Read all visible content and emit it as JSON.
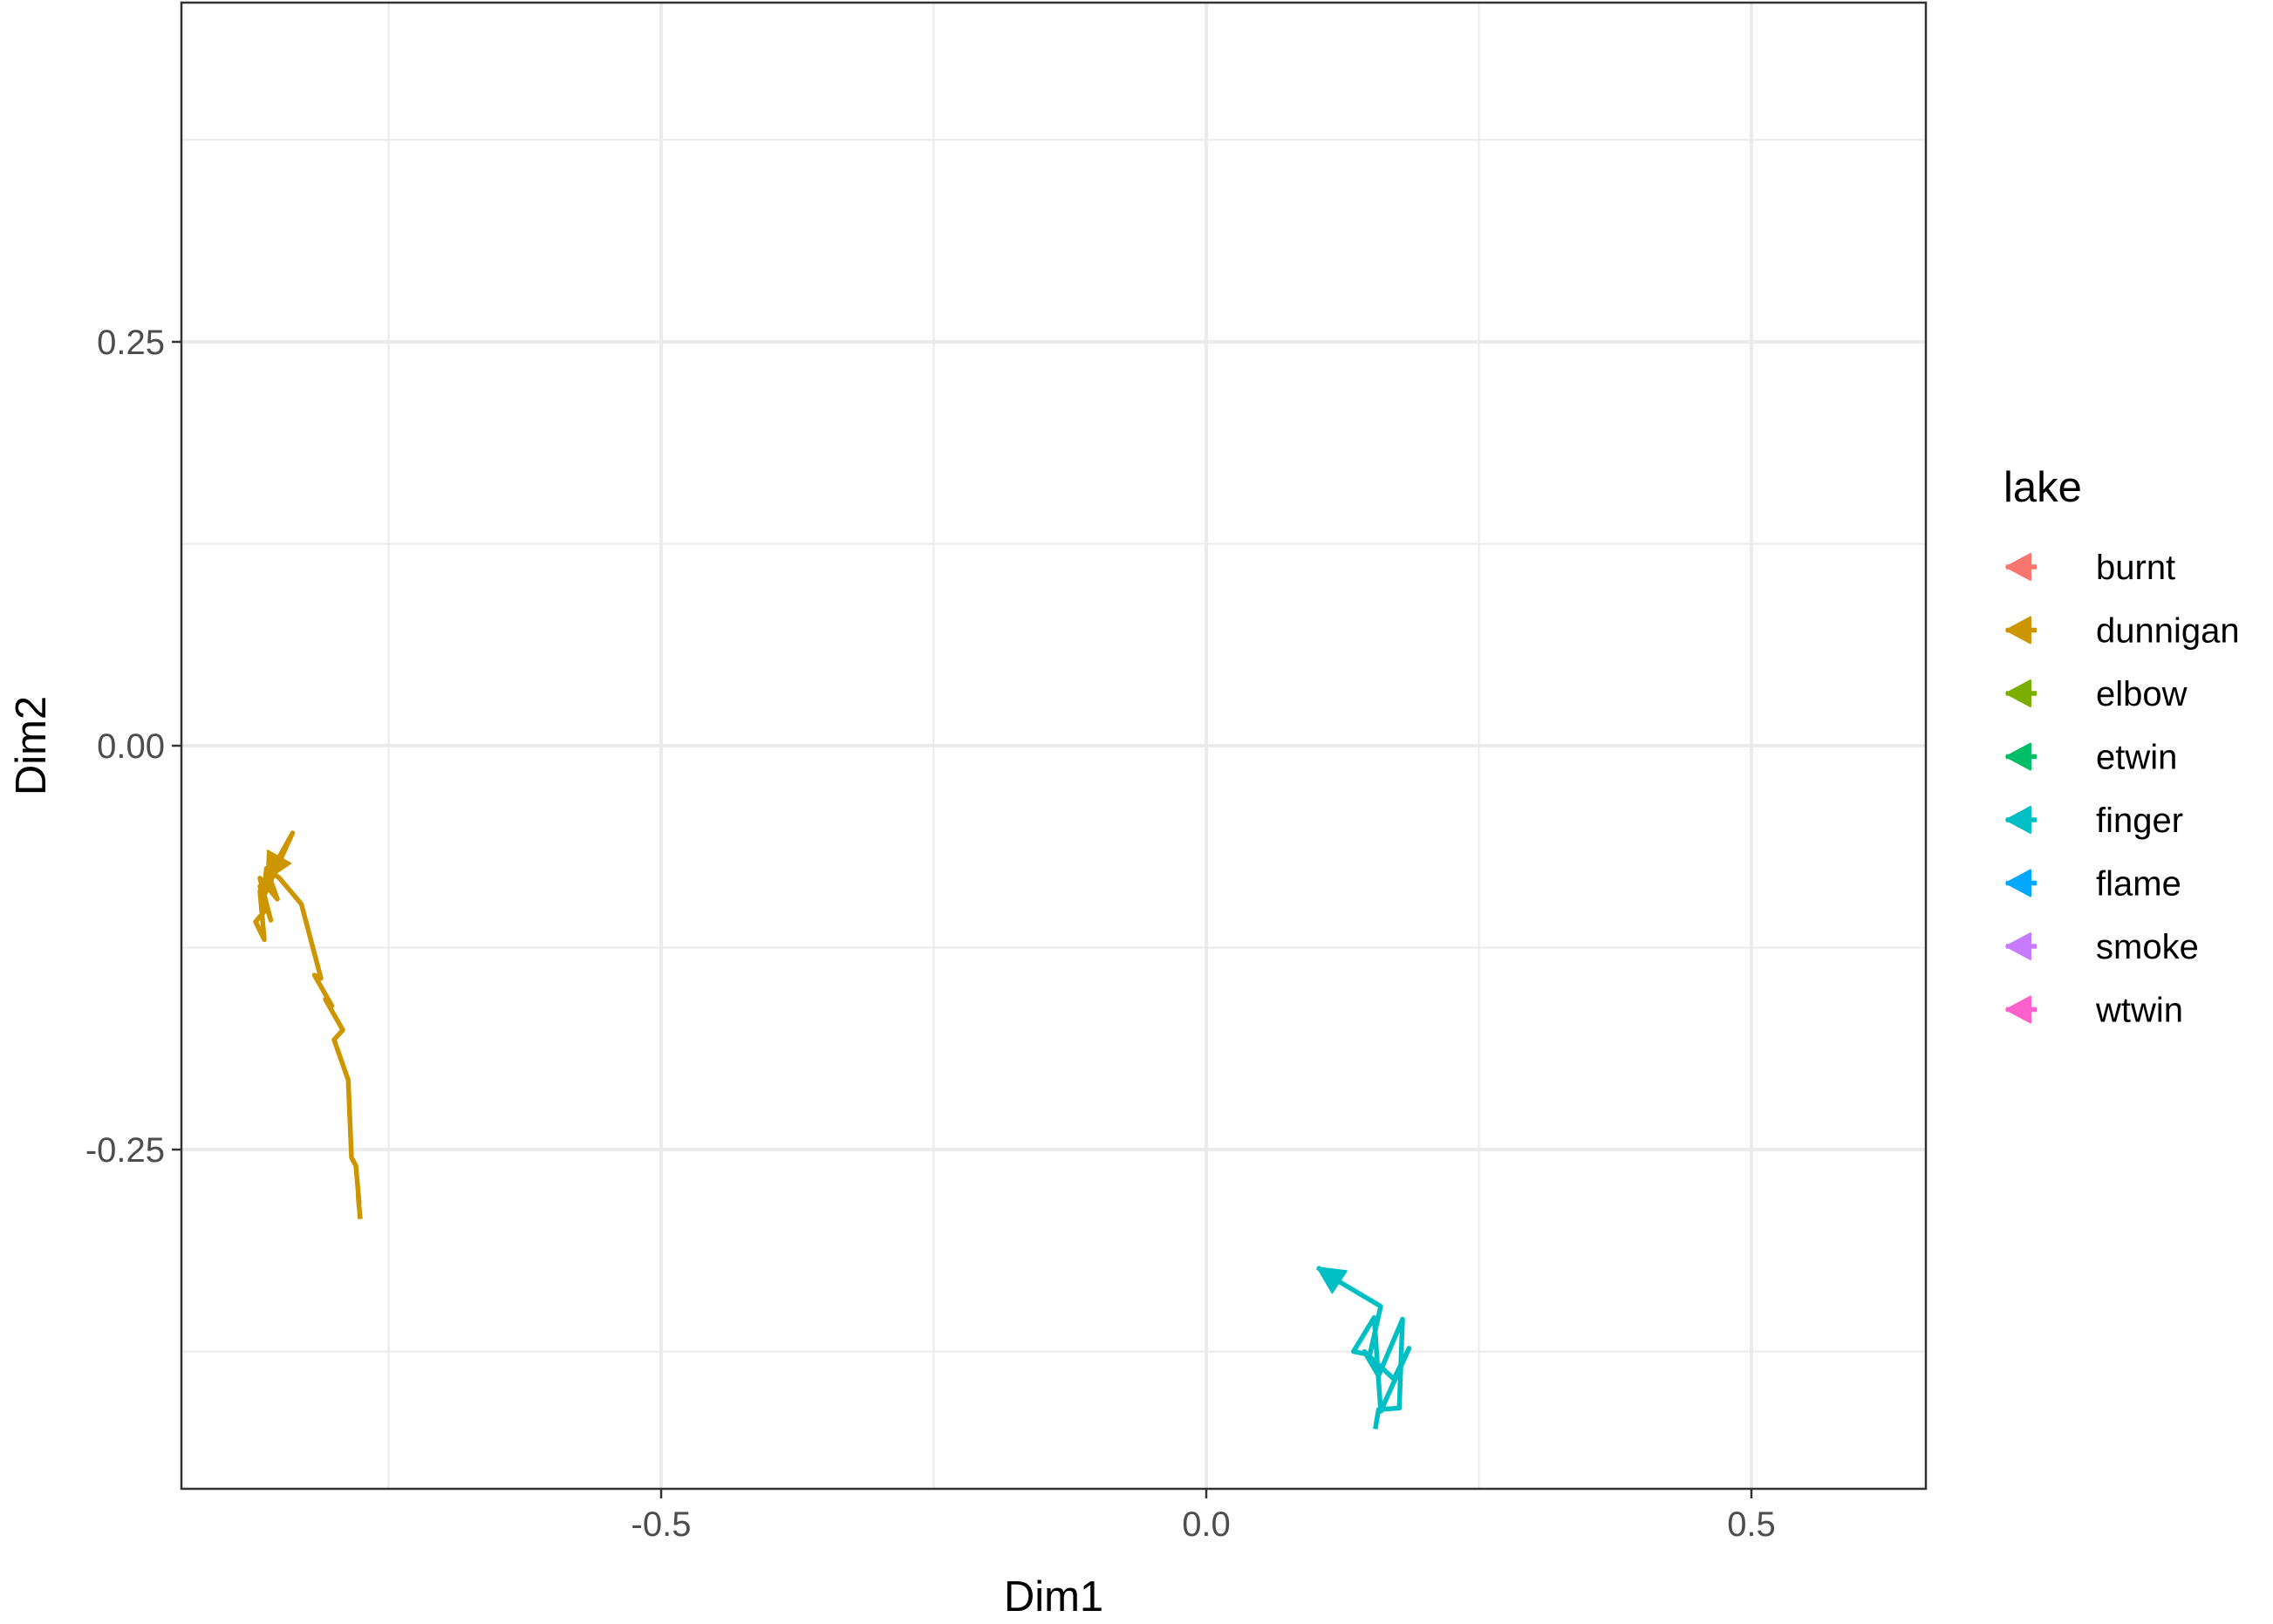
{
  "chart_data": {
    "type": "line",
    "xlabel": "Dim1",
    "ylabel": "Dim2",
    "xlim": [
      -0.94,
      0.66
    ],
    "ylim": [
      -0.46,
      0.46
    ],
    "x_ticks": [
      -0.5,
      0.0,
      0.5
    ],
    "x_tick_labels": [
      "-0.5",
      "0.0",
      "0.5"
    ],
    "y_ticks": [
      -0.25,
      0.0,
      0.25
    ],
    "y_tick_labels": [
      "-0.25",
      "0.00",
      "0.25"
    ],
    "grid": true,
    "legend": {
      "title": "lake",
      "position": "right",
      "entries": [
        {
          "name": "burnt",
          "color": "#F8766D"
        },
        {
          "name": "dunnigan",
          "color": "#CD9600"
        },
        {
          "name": "elbow",
          "color": "#7CAE00"
        },
        {
          "name": "etwin",
          "color": "#00BE67"
        },
        {
          "name": "finger",
          "color": "#00BFC4"
        },
        {
          "name": "flame",
          "color": "#00A9FF"
        },
        {
          "name": "smoke",
          "color": "#C77CFF"
        },
        {
          "name": "wtwin",
          "color": "#FF61CC"
        }
      ]
    },
    "series": [
      {
        "name": "dunnigan",
        "color": "#CD9600",
        "x": [
          -0.776,
          -0.778,
          -0.777,
          -0.78,
          -0.784,
          -0.787,
          -0.8,
          -0.792,
          -0.808,
          -0.802,
          -0.818,
          -0.812,
          -0.83,
          -0.85,
          -0.862,
          -0.852,
          -0.868,
          -0.858,
          -0.868,
          -0.862,
          -0.872,
          -0.864,
          -0.868,
          -0.86,
          -0.862,
          -0.865,
          -0.838,
          -0.862
        ],
        "y": [
          -0.293,
          -0.278,
          -0.283,
          -0.26,
          -0.255,
          -0.207,
          -0.182,
          -0.176,
          -0.157,
          -0.161,
          -0.142,
          -0.144,
          -0.098,
          -0.082,
          -0.076,
          -0.095,
          -0.082,
          -0.108,
          -0.087,
          -0.101,
          -0.109,
          -0.12,
          -0.09,
          -0.085,
          -0.076,
          -0.094,
          -0.054,
          -0.083
        ]
      },
      {
        "name": "finger",
        "color": "#00BFC4",
        "x": [
          0.155,
          0.158,
          0.177,
          0.18,
          0.158,
          0.145,
          0.172,
          0.186,
          0.16,
          0.154,
          0.135,
          0.15,
          0.16,
          0.12,
          0.102
        ],
        "y": [
          -0.423,
          -0.411,
          -0.41,
          -0.355,
          -0.39,
          -0.375,
          -0.392,
          -0.373,
          -0.412,
          -0.354,
          -0.375,
          -0.377,
          -0.347,
          -0.331,
          -0.323
        ]
      }
    ]
  }
}
